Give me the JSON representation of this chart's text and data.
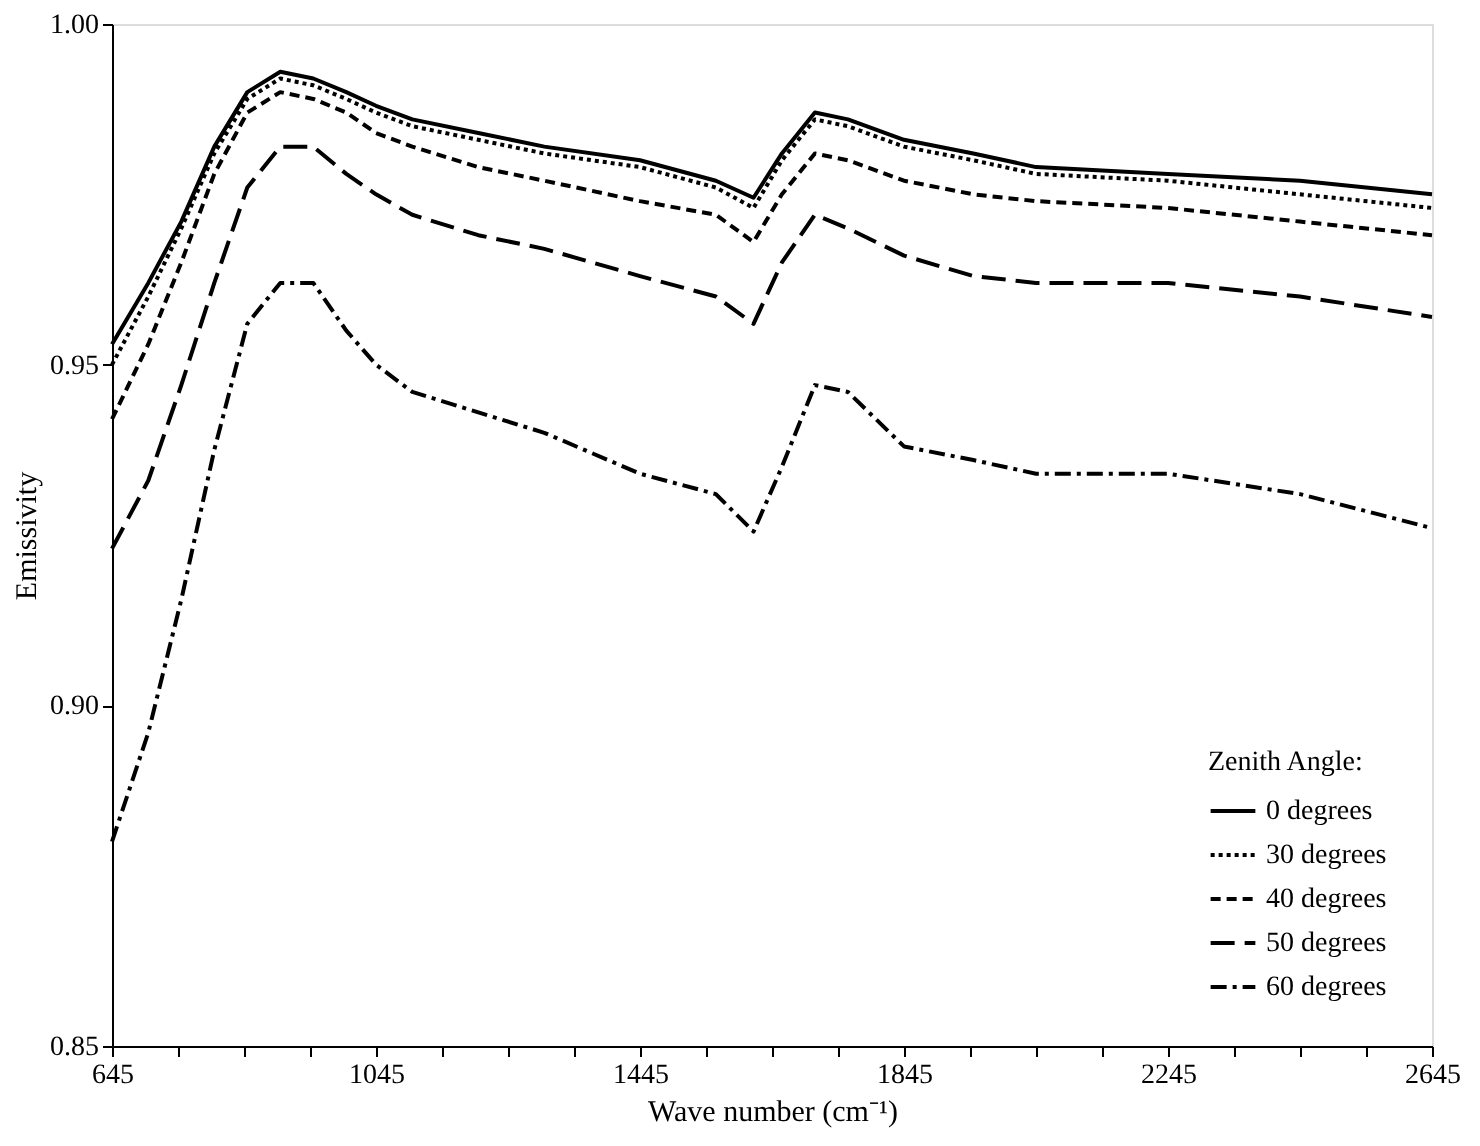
{
  "chart_data": {
    "type": "line",
    "xlabel": "Wave number (cm⁻¹)",
    "ylabel": "Emissivity",
    "legend_title": "Zenith Angle:",
    "legend": "bottom right",
    "grid": false,
    "marker": "none",
    "xlim": [
      645,
      2645
    ],
    "ylim": [
      0.85,
      1.0
    ],
    "xticks": [
      645,
      {
        "value": 745,
        "label": null
      },
      {
        "value": 845,
        "label": null
      },
      {
        "value": 945,
        "label": null
      },
      1045,
      {
        "value": 1145,
        "label": null
      },
      {
        "value": 1245,
        "label": null
      },
      {
        "value": 1345,
        "label": null
      },
      1445,
      {
        "value": 1545,
        "label": null
      },
      {
        "value": 1645,
        "label": null
      },
      {
        "value": 1745,
        "label": null
      },
      1845,
      {
        "value": 1945,
        "label": null
      },
      {
        "value": 2045,
        "label": null
      },
      {
        "value": 2145,
        "label": null
      },
      2245,
      {
        "value": 2345,
        "label": null
      },
      {
        "value": 2445,
        "label": null
      },
      {
        "value": 2545,
        "label": null
      },
      2645
    ],
    "yticks": [
      {
        "value": 0.85,
        "label": "0.85"
      },
      {
        "value": 0.9,
        "label": "0.90"
      },
      {
        "value": 0.95,
        "label": "0.95"
      },
      {
        "value": 1.0,
        "label": "1.00"
      }
    ],
    "x": [
      645,
      700,
      750,
      800,
      850,
      900,
      950,
      1000,
      1045,
      1100,
      1200,
      1300,
      1445,
      1560,
      1617,
      1660,
      1710,
      1760,
      1845,
      1950,
      2045,
      2245,
      2445,
      2645
    ],
    "series": [
      {
        "name": "0 degrees",
        "color": "#000000",
        "line_style": "solid",
        "values": [
          0.953,
          0.962,
          0.971,
          0.982,
          0.99,
          0.993,
          0.992,
          0.99,
          0.988,
          0.986,
          0.984,
          0.982,
          0.98,
          0.977,
          0.9745,
          0.981,
          0.987,
          0.986,
          0.983,
          0.981,
          0.979,
          0.978,
          0.977,
          0.975
        ]
      },
      {
        "name": "30 degrees",
        "color": "#000000",
        "line_style": "dotted",
        "values": [
          0.95,
          0.96,
          0.97,
          0.981,
          0.989,
          0.992,
          0.991,
          0.989,
          0.987,
          0.985,
          0.983,
          0.981,
          0.979,
          0.976,
          0.973,
          0.98,
          0.986,
          0.985,
          0.982,
          0.98,
          0.978,
          0.977,
          0.975,
          0.973
        ]
      },
      {
        "name": "40 degrees",
        "color": "#000000",
        "line_style": "dashed",
        "values": [
          0.942,
          0.953,
          0.965,
          0.978,
          0.987,
          0.99,
          0.989,
          0.987,
          0.984,
          0.982,
          0.979,
          0.977,
          0.974,
          0.972,
          0.968,
          0.975,
          0.981,
          0.98,
          0.977,
          0.975,
          0.974,
          0.973,
          0.971,
          0.969
        ]
      },
      {
        "name": "50 degrees",
        "color": "#000000",
        "line_style": "longdash",
        "values": [
          0.923,
          0.933,
          0.947,
          0.962,
          0.976,
          0.982,
          0.982,
          0.978,
          0.975,
          0.972,
          0.969,
          0.967,
          0.963,
          0.96,
          0.956,
          0.965,
          0.972,
          0.97,
          0.966,
          0.963,
          0.962,
          0.962,
          0.96,
          0.957
        ]
      },
      {
        "name": "60 degrees",
        "color": "#000000",
        "line_style": "dashdot",
        "values": [
          0.88,
          0.896,
          0.9155,
          0.9375,
          0.956,
          0.962,
          0.962,
          0.955,
          0.95,
          0.946,
          0.943,
          0.94,
          0.934,
          0.931,
          0.9255,
          0.935,
          0.947,
          0.946,
          0.938,
          0.936,
          0.934,
          0.934,
          0.931,
          0.926
        ]
      }
    ]
  }
}
